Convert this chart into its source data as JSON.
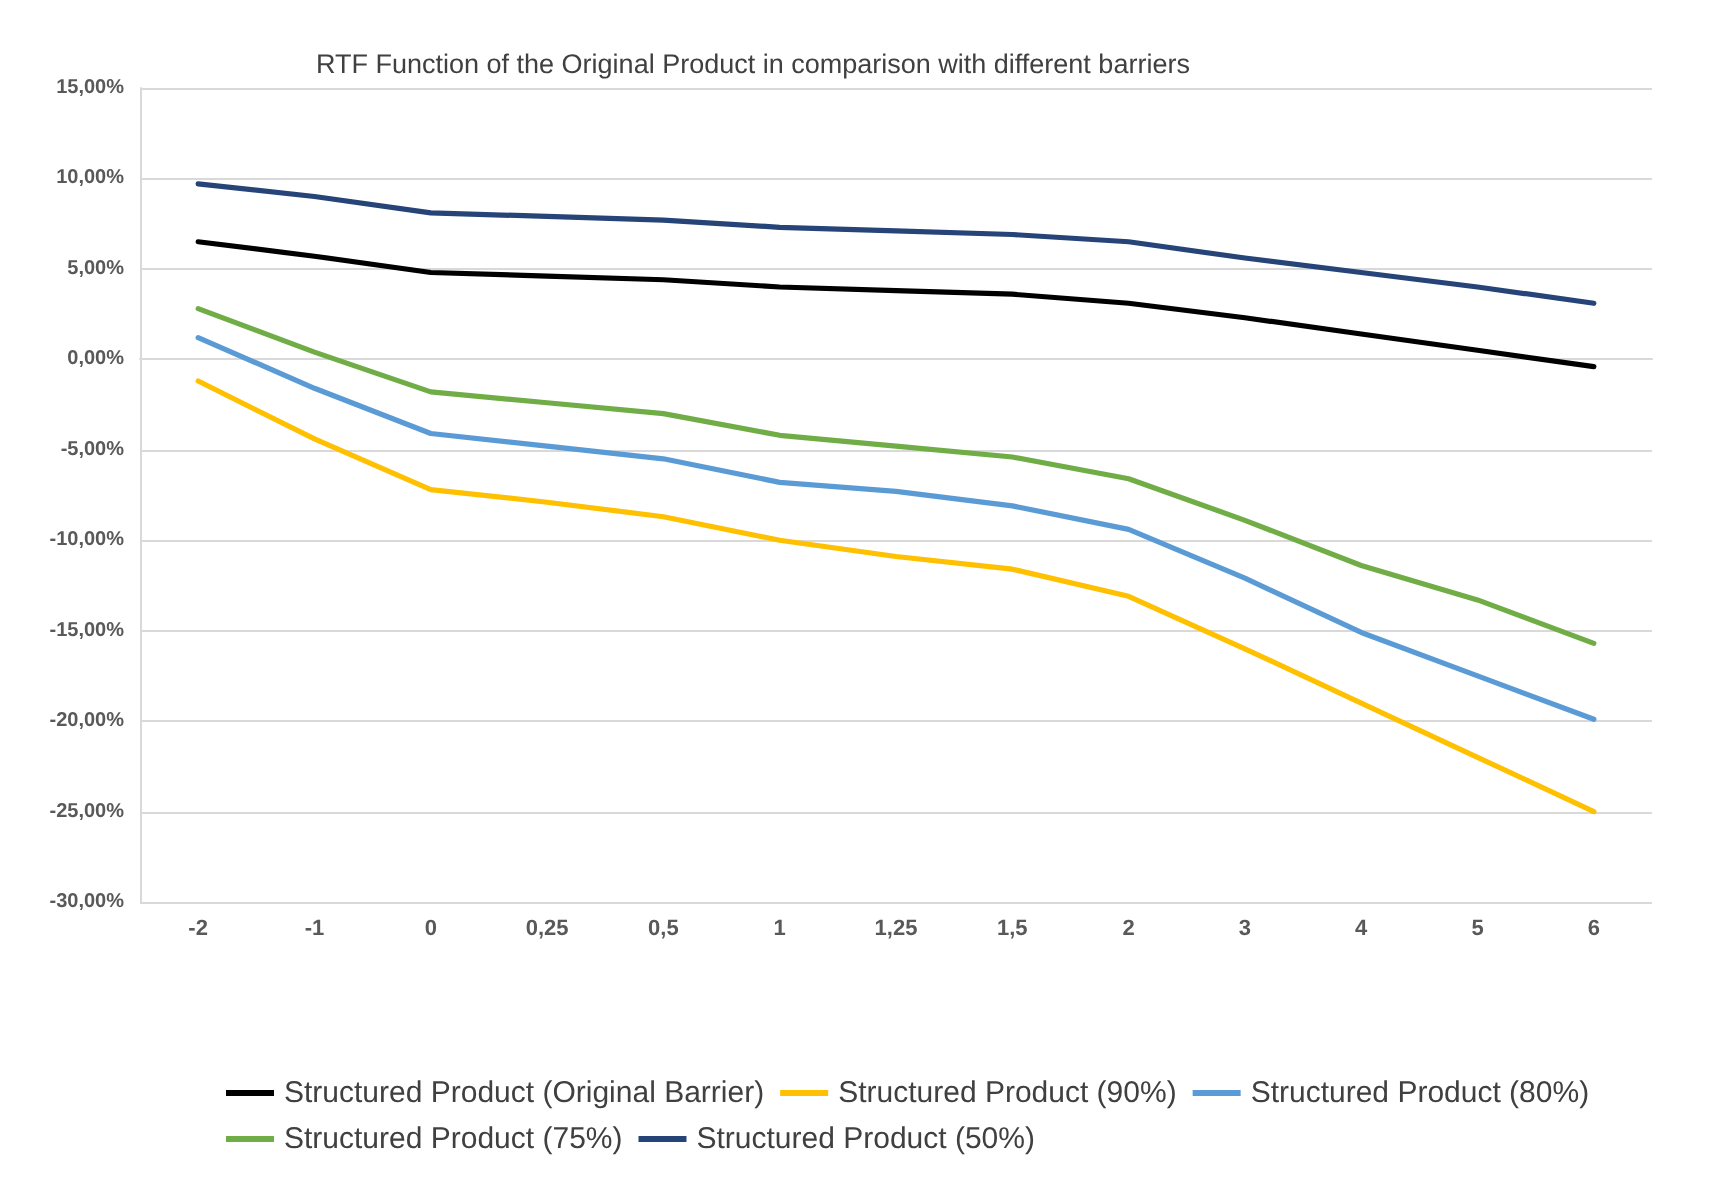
{
  "chart_data": {
    "type": "line",
    "title": "RTF Function of the Original Product in comparison with different barriers",
    "categories": [
      "-2",
      "-1",
      "0",
      "0,25",
      "0,5",
      "1",
      "1,25",
      "1,5",
      "2",
      "3",
      "4",
      "5",
      "6"
    ],
    "series": [
      {
        "name": "Structured Product (Original Barrier)",
        "color": "#000000",
        "values": [
          6.5,
          5.7,
          4.8,
          4.6,
          4.4,
          4.0,
          3.8,
          3.6,
          3.1,
          2.3,
          1.4,
          0.5,
          -0.4
        ]
      },
      {
        "name": "Structured Product (90%)",
        "color": "#ffc000",
        "values": [
          -1.2,
          -4.4,
          -7.2,
          -7.9,
          -8.7,
          -10.0,
          -10.9,
          -11.6,
          -13.1,
          -16.0,
          -19.0,
          -22.0,
          -25.0
        ]
      },
      {
        "name": "Structured Product (80%)",
        "color": "#5b9bd5",
        "values": [
          1.2,
          -1.6,
          -4.1,
          -4.8,
          -5.5,
          -6.8,
          -7.3,
          -8.1,
          -9.4,
          -12.1,
          -15.1,
          -17.5,
          -19.9
        ]
      },
      {
        "name": "Structured Product (75%)",
        "color": "#70ad47",
        "values": [
          2.8,
          0.4,
          -1.8,
          -2.4,
          -3.0,
          -4.2,
          -4.8,
          -5.4,
          -6.6,
          -8.9,
          -11.4,
          -13.3,
          -15.7
        ]
      },
      {
        "name": "Structured Product (50%)",
        "color": "#264478",
        "values": [
          9.7,
          9.0,
          8.1,
          7.9,
          7.7,
          7.3,
          7.1,
          6.9,
          6.5,
          5.6,
          4.8,
          4.0,
          3.1
        ]
      }
    ],
    "ylim": [
      -30,
      15
    ],
    "yticks": [
      {
        "value": -30,
        "label": "-30,00%"
      },
      {
        "value": -25,
        "label": "-25,00%"
      },
      {
        "value": -20,
        "label": "-20,00%"
      },
      {
        "value": -15,
        "label": "-15,00%"
      },
      {
        "value": -10,
        "label": "-10,00%"
      },
      {
        "value": -5,
        "label": "-5,00%"
      },
      {
        "value": 0,
        "label": "0,00%"
      },
      {
        "value": 5,
        "label": "5,00%"
      },
      {
        "value": 10,
        "label": "10,00%"
      },
      {
        "value": 15,
        "label": "15,00%"
      }
    ],
    "grid": "y",
    "legend": "bottom",
    "marker": "none",
    "line_style": "solid"
  }
}
